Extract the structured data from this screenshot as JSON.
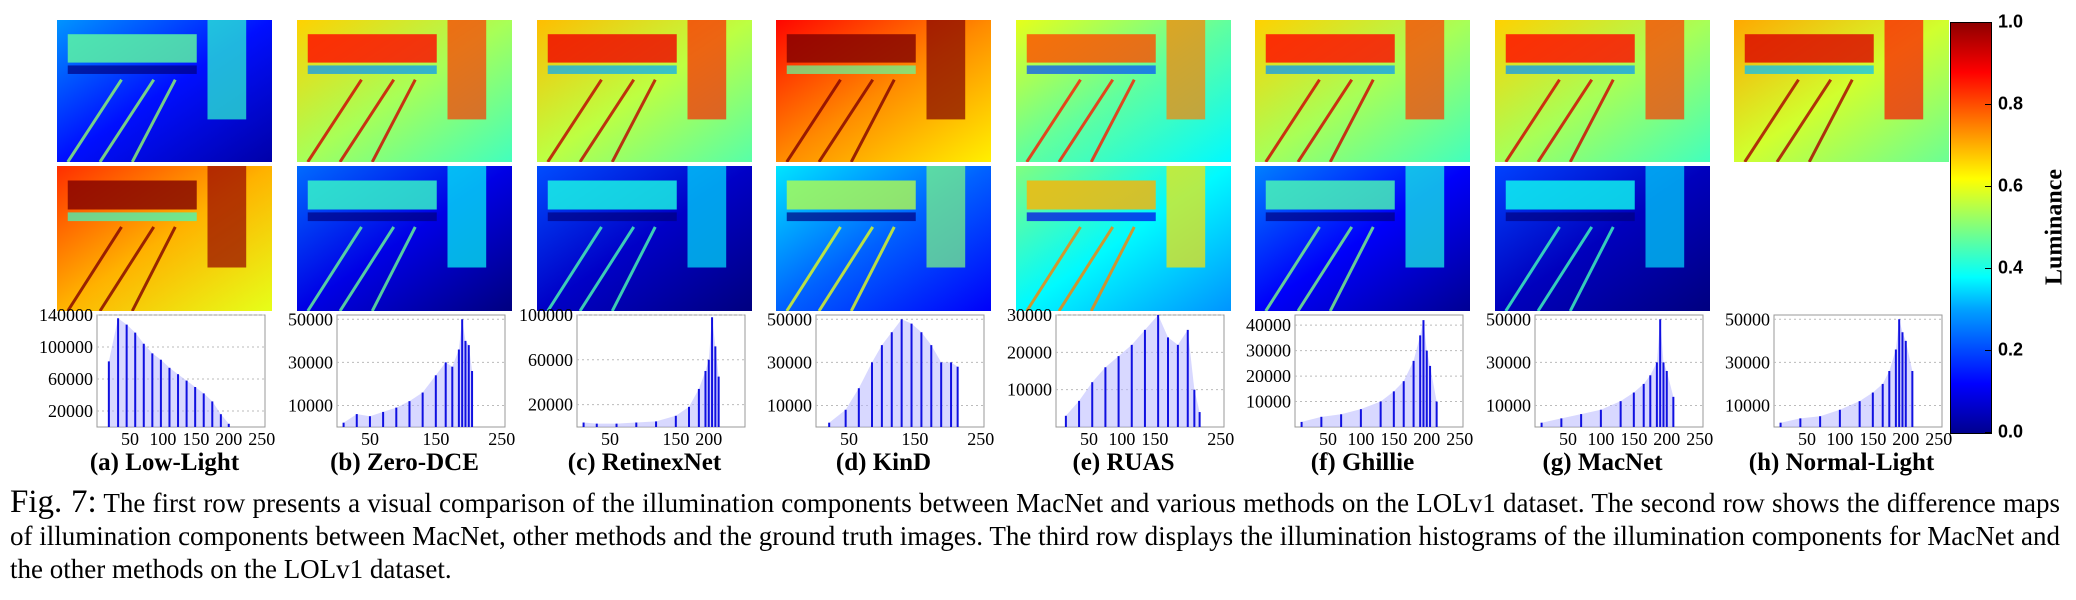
{
  "methods": [
    {
      "label": "(a) Low-Light",
      "tone": 0.22,
      "diff": 0.78,
      "has_diff": true
    },
    {
      "label": "(b) Zero-DCE",
      "tone": 0.62,
      "diff": 0.18,
      "has_diff": true
    },
    {
      "label": "(c) RetinexNet",
      "tone": 0.64,
      "diff": 0.15,
      "has_diff": true
    },
    {
      "label": "(d) KinD",
      "tone": 0.82,
      "diff": 0.3,
      "has_diff": true
    },
    {
      "label": "(e) RUAS",
      "tone": 0.55,
      "diff": 0.45,
      "has_diff": true
    },
    {
      "label": "(f) Ghillie",
      "tone": 0.62,
      "diff": 0.2,
      "has_diff": true
    },
    {
      "label": "(g) MacNet",
      "tone": 0.62,
      "diff": 0.14,
      "has_diff": true
    },
    {
      "label": "(h) Normal-Light",
      "tone": 0.66,
      "diff": 0,
      "has_diff": false
    }
  ],
  "colorbar": {
    "label": "Luminance",
    "ticks": [
      "0.0",
      "0.2",
      "0.4",
      "0.6",
      "0.8",
      "1.0"
    ],
    "colormap": "jet"
  },
  "chart_data": [
    {
      "type": "bar",
      "xlim": [
        0,
        255
      ],
      "ylim": [
        0,
        140000
      ],
      "xticks": [
        "50",
        "100",
        "150",
        "200",
        "250"
      ],
      "yticks": [
        "20000",
        "60000",
        "100000",
        "140000"
      ],
      "x": [
        18,
        32,
        45,
        58,
        71,
        84,
        97,
        110,
        123,
        136,
        149,
        162,
        175,
        188,
        200
      ],
      "y": [
        82000,
        136000,
        128000,
        118000,
        104000,
        92000,
        84000,
        74000,
        66000,
        58000,
        50000,
        42000,
        32000,
        16000,
        4000
      ]
    },
    {
      "type": "bar",
      "xlim": [
        0,
        255
      ],
      "ylim": [
        0,
        52000
      ],
      "xticks": [
        "50",
        "150",
        "250"
      ],
      "yticks": [
        "10000",
        "30000",
        "50000"
      ],
      "x": [
        10,
        30,
        50,
        70,
        90,
        110,
        130,
        150,
        165,
        175,
        185,
        190,
        195,
        200,
        205
      ],
      "y": [
        2000,
        6000,
        5000,
        7000,
        9000,
        12000,
        16000,
        24000,
        30000,
        28000,
        36000,
        50000,
        40000,
        38000,
        26000
      ]
    },
    {
      "type": "bar",
      "xlim": [
        0,
        255
      ],
      "ylim": [
        0,
        100000
      ],
      "xticks": [
        "50",
        "150",
        "200"
      ],
      "yticks": [
        "20000",
        "60000",
        "100000"
      ],
      "x": [
        10,
        30,
        60,
        90,
        120,
        150,
        170,
        185,
        195,
        200,
        205,
        210,
        215
      ],
      "y": [
        4000,
        3000,
        3000,
        4000,
        5000,
        10000,
        18000,
        34000,
        50000,
        60000,
        98000,
        72000,
        45000
      ]
    },
    {
      "type": "bar",
      "xlim": [
        0,
        255
      ],
      "ylim": [
        0,
        52000
      ],
      "xticks": [
        "50",
        "150",
        "250"
      ],
      "yticks": [
        "10000",
        "30000",
        "50000"
      ],
      "x": [
        20,
        45,
        65,
        85,
        100,
        115,
        130,
        145,
        160,
        175,
        190,
        205,
        215
      ],
      "y": [
        2000,
        8000,
        18000,
        30000,
        38000,
        44000,
        50000,
        48000,
        44000,
        38000,
        30000,
        30000,
        28000
      ]
    },
    {
      "type": "bar",
      "xlim": [
        0,
        255
      ],
      "ylim": [
        0,
        30000
      ],
      "xticks": [
        "50",
        "100",
        "150",
        "250"
      ],
      "yticks": [
        "10000",
        "20000",
        "30000"
      ],
      "x": [
        15,
        35,
        55,
        75,
        95,
        115,
        135,
        155,
        170,
        185,
        200,
        210,
        218
      ],
      "y": [
        3000,
        7000,
        12000,
        16000,
        19000,
        22000,
        26000,
        30000,
        24000,
        22000,
        26000,
        10000,
        4000
      ]
    },
    {
      "type": "bar",
      "xlim": [
        0,
        255
      ],
      "ylim": [
        0,
        44000
      ],
      "xticks": [
        "50",
        "100",
        "150",
        "200",
        "250"
      ],
      "yticks": [
        "10000",
        "20000",
        "30000",
        "40000"
      ],
      "x": [
        10,
        40,
        70,
        100,
        130,
        150,
        165,
        180,
        190,
        195,
        200,
        205,
        215
      ],
      "y": [
        2000,
        4000,
        5000,
        7000,
        10000,
        14000,
        18000,
        26000,
        36000,
        42000,
        30000,
        24000,
        10000
      ]
    },
    {
      "type": "bar",
      "xlim": [
        0,
        255
      ],
      "ylim": [
        0,
        52000
      ],
      "xticks": [
        "50",
        "100",
        "150",
        "200",
        "250"
      ],
      "yticks": [
        "10000",
        "30000",
        "50000"
      ],
      "x": [
        10,
        40,
        70,
        100,
        130,
        150,
        165,
        175,
        185,
        190,
        195,
        200,
        210
      ],
      "y": [
        2000,
        4000,
        6000,
        8000,
        12000,
        16000,
        20000,
        24000,
        30000,
        50000,
        30000,
        26000,
        14000
      ]
    },
    {
      "type": "bar",
      "xlim": [
        0,
        255
      ],
      "ylim": [
        0,
        52000
      ],
      "xticks": [
        "50",
        "100",
        "150",
        "200",
        "250"
      ],
      "yticks": [
        "10000",
        "30000",
        "50000"
      ],
      "x": [
        10,
        40,
        70,
        100,
        130,
        150,
        165,
        175,
        185,
        190,
        195,
        200,
        210
      ],
      "y": [
        2000,
        4000,
        5000,
        8000,
        12000,
        16000,
        20000,
        26000,
        36000,
        50000,
        44000,
        40000,
        26000
      ]
    }
  ],
  "caption": {
    "fig": "Fig. 7:",
    "text": " The first row presents a visual comparison of the illumination components between MacNet and various methods on the LOLv1 dataset. The second row shows the difference maps of illumination components between MacNet, other methods and the ground truth images. The third row displays the illumination histograms of the illumination components for MacNet and the other methods on the LOLv1 dataset."
  }
}
